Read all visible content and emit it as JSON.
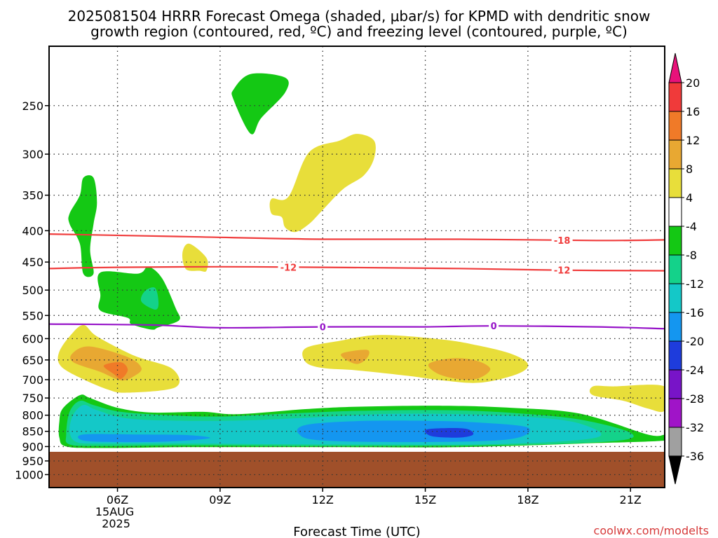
{
  "title_line1": "2025081504 HRRR Forecast Omega (shaded, μbar/s) for KPMD with dendritic snow",
  "title_line2": "growth region (contoured, red, ºC) and freezing level (contoured, purple, ºC)",
  "credit": "coolwx.com/modelts",
  "chart_data": {
    "type": "heatmap",
    "title": "2025081504 HRRR Forecast Omega (shaded, μbar/s) for KPMD with dendritic snow growth region (contoured, red, ºC) and freezing level (contoured, purple, ºC)",
    "xlabel": "Forecast Time (UTC)",
    "ylabel": "",
    "x_range_hours_utc": [
      4,
      22
    ],
    "y_range_hPa": [
      1050,
      200
    ],
    "y_scale": "log-pressure (inverted)",
    "x_ticks": [
      {
        "hour": 6,
        "label": "06Z",
        "sub1": "15AUG",
        "sub2": "2025"
      },
      {
        "hour": 9,
        "label": "09Z"
      },
      {
        "hour": 12,
        "label": "12Z"
      },
      {
        "hour": 15,
        "label": "15Z"
      },
      {
        "hour": 18,
        "label": "18Z"
      },
      {
        "hour": 21,
        "label": "21Z"
      }
    ],
    "y_ticks": [
      250,
      300,
      350,
      400,
      450,
      500,
      550,
      600,
      650,
      700,
      750,
      800,
      850,
      900,
      950,
      1000
    ],
    "grid": true,
    "ground_level_hPa": 918,
    "colorbar": {
      "levels": [
        20,
        16,
        12,
        8,
        4,
        -4,
        -8,
        -12,
        -16,
        -20,
        -24,
        -28,
        -32,
        -36
      ],
      "colors": [
        "#e8127a",
        "#f03a3a",
        "#f07a28",
        "#e8a832",
        "#e8de3a",
        "#ffffff",
        "#14c814",
        "#14d28a",
        "#14c8c8",
        "#1496f0",
        "#1e3cdc",
        "#7814c8",
        "#a014c8",
        "#a0a0a0",
        "#000000"
      ]
    },
    "contours": [
      {
        "name": "dendritic snow growth -18C",
        "value": -18,
        "color": "#f03c3c",
        "points": [
          [
            4,
            405
          ],
          [
            8,
            409
          ],
          [
            12,
            413
          ],
          [
            16,
            413
          ],
          [
            20,
            415
          ],
          [
            22,
            414
          ]
        ],
        "labels": [
          {
            "x": 19.0,
            "text": "-18"
          }
        ]
      },
      {
        "name": "dendritic snow growth -12C",
        "value": -12,
        "color": "#f03c3c",
        "points": [
          [
            4,
            461
          ],
          [
            6,
            459
          ],
          [
            9,
            458
          ],
          [
            12,
            459
          ],
          [
            16,
            461
          ],
          [
            19,
            464
          ],
          [
            22,
            465
          ]
        ],
        "labels": [
          {
            "x": 11.0,
            "text": "-12"
          },
          {
            "x": 19.0,
            "text": "-12"
          }
        ]
      },
      {
        "name": "freezing level 0C",
        "value": 0,
        "color": "#9614c8",
        "points": [
          [
            4,
            568
          ],
          [
            7,
            570
          ],
          [
            9,
            576
          ],
          [
            12,
            574
          ],
          [
            15,
            574
          ],
          [
            17,
            572
          ],
          [
            20,
            574
          ],
          [
            22,
            578
          ]
        ],
        "labels": [
          {
            "x": 12.0,
            "text": "0"
          },
          {
            "x": 17.0,
            "text": "0"
          }
        ]
      }
    ],
    "shaded_regions": [
      {
        "name": "upward motion -4 (upper)",
        "omega": -4,
        "color": "#14c814",
        "points": [
          [
            9.4,
            235
          ],
          [
            9.9,
            222
          ],
          [
            10.9,
            225
          ],
          [
            10.9,
            238
          ],
          [
            10.2,
            262
          ],
          [
            9.9,
            278
          ],
          [
            9.4,
            245
          ]
        ]
      },
      {
        "name": "upward motion -4 (tall column)",
        "omega": -4,
        "color": "#14c814",
        "points": [
          [
            5.0,
            328
          ],
          [
            5.3,
            328
          ],
          [
            5.4,
            360
          ],
          [
            5.3,
            390
          ],
          [
            5.2,
            430
          ],
          [
            5.3,
            470
          ],
          [
            5.0,
            470
          ],
          [
            4.9,
            420
          ],
          [
            4.6,
            390
          ],
          [
            4.6,
            375
          ],
          [
            4.9,
            350
          ]
        ]
      },
      {
        "name": "upward motion -4 (mid)",
        "omega": -4,
        "color": "#14c814",
        "points": [
          [
            5.5,
            468
          ],
          [
            6.6,
            470
          ],
          [
            6.9,
            458
          ],
          [
            7.3,
            478
          ],
          [
            7.7,
            535
          ],
          [
            7.8,
            560
          ],
          [
            7.2,
            575
          ],
          [
            7.0,
            580
          ],
          [
            6.4,
            568
          ],
          [
            6.3,
            555
          ],
          [
            5.5,
            540
          ],
          [
            5.5,
            510
          ]
        ]
      },
      {
        "name": "upward motion -8 (mid patch)",
        "omega": -8,
        "color": "#14d28a",
        "points": [
          [
            6.8,
            502
          ],
          [
            7.1,
            496
          ],
          [
            7.2,
            525
          ],
          [
            7.1,
            538
          ],
          [
            6.7,
            522
          ]
        ]
      },
      {
        "name": "upward motion -4 (low band)",
        "omega": -4,
        "color": "#14c814",
        "points": [
          [
            4.4,
            780
          ],
          [
            4.9,
            742
          ],
          [
            5.2,
            750
          ],
          [
            6.0,
            778
          ],
          [
            7.0,
            792
          ],
          [
            8.5,
            790
          ],
          [
            9.5,
            797
          ],
          [
            11.5,
            782
          ],
          [
            13.0,
            775
          ],
          [
            15.5,
            772
          ],
          [
            17.5,
            778
          ],
          [
            19.5,
            795
          ],
          [
            21.5,
            860
          ],
          [
            22.0,
            862
          ],
          [
            22.0,
            880
          ],
          [
            19.5,
            890
          ],
          [
            16.0,
            902
          ],
          [
            12.0,
            902
          ],
          [
            8.0,
            902
          ],
          [
            5.5,
            905
          ],
          [
            4.5,
            900
          ],
          [
            4.3,
            870
          ],
          [
            4.3,
            820
          ]
        ]
      },
      {
        "name": "upward motion -8 (low band)",
        "omega": -8,
        "color": "#14d28a",
        "points": [
          [
            4.6,
            790
          ],
          [
            4.9,
            758
          ],
          [
            5.3,
            770
          ],
          [
            6.1,
            790
          ],
          [
            7.5,
            800
          ],
          [
            9.0,
            804
          ],
          [
            11.0,
            795
          ],
          [
            13.0,
            787
          ],
          [
            15.5,
            785
          ],
          [
            17.5,
            793
          ],
          [
            19.5,
            813
          ],
          [
            21.0,
            855
          ],
          [
            20.5,
            882
          ],
          [
            17.0,
            896
          ],
          [
            12.0,
            898
          ],
          [
            8.0,
            896
          ],
          [
            5.5,
            898
          ],
          [
            4.6,
            893
          ],
          [
            4.5,
            860
          ]
        ]
      },
      {
        "name": "upward motion -12 (low band)",
        "omega": -12,
        "color": "#14c8c8",
        "points": [
          [
            4.7,
            800
          ],
          [
            5.0,
            770
          ],
          [
            5.4,
            785
          ],
          [
            6.3,
            810
          ],
          [
            8.0,
            817
          ],
          [
            10.0,
            815
          ],
          [
            12.0,
            805
          ],
          [
            14.0,
            796
          ],
          [
            16.0,
            797
          ],
          [
            18.0,
            805
          ],
          [
            19.5,
            825
          ],
          [
            20.0,
            870
          ],
          [
            17.0,
            892
          ],
          [
            12.0,
            893
          ],
          [
            8.0,
            890
          ],
          [
            5.5,
            890
          ],
          [
            4.8,
            885
          ],
          [
            4.6,
            850
          ]
        ]
      },
      {
        "name": "upward motion -16 (left)",
        "omega": -16,
        "color": "#1496f0",
        "points": [
          [
            5.0,
            860
          ],
          [
            6.5,
            860
          ],
          [
            8.0,
            862
          ],
          [
            8.7,
            872
          ],
          [
            7.5,
            883
          ],
          [
            6.0,
            885
          ],
          [
            5.0,
            880
          ]
        ]
      },
      {
        "name": "upward motion -16 (right)",
        "omega": -16,
        "color": "#1496f0",
        "points": [
          [
            11.5,
            830
          ],
          [
            13.0,
            818
          ],
          [
            15.0,
            817
          ],
          [
            16.5,
            822
          ],
          [
            18.0,
            838
          ],
          [
            17.5,
            875
          ],
          [
            15.0,
            885
          ],
          [
            12.0,
            880
          ],
          [
            11.3,
            858
          ]
        ]
      },
      {
        "name": "upward motion -20",
        "omega": -20,
        "color": "#1e3cdc",
        "points": [
          [
            15.0,
            846
          ],
          [
            15.5,
            840
          ],
          [
            16.2,
            842
          ],
          [
            16.4,
            860
          ],
          [
            16.0,
            870
          ],
          [
            15.2,
            866
          ]
        ]
      },
      {
        "name": "downward motion 4 (upper)",
        "omega": 4,
        "color": "#e8de3a",
        "points": [
          [
            11.6,
            298
          ],
          [
            12.5,
            285
          ],
          [
            13.0,
            278
          ],
          [
            13.5,
            285
          ],
          [
            13.5,
            305
          ],
          [
            13.2,
            325
          ],
          [
            12.6,
            342
          ],
          [
            12.0,
            370
          ],
          [
            11.6,
            390
          ],
          [
            11.2,
            402
          ],
          [
            10.9,
            395
          ],
          [
            10.8,
            380
          ],
          [
            10.5,
            375
          ],
          [
            10.5,
            355
          ],
          [
            11.0,
            352
          ]
        ]
      },
      {
        "name": "downward motion 4 (small)",
        "omega": 4,
        "color": "#e8de3a",
        "points": [
          [
            7.9,
            435
          ],
          [
            8.1,
            420
          ],
          [
            8.6,
            443
          ],
          [
            8.6,
            465
          ],
          [
            8.4,
            465
          ],
          [
            8.0,
            462
          ]
        ]
      },
      {
        "name": "downward motion 4 (left)",
        "omega": 4,
        "color": "#e8de3a",
        "points": [
          [
            4.3,
            630
          ],
          [
            4.6,
            595
          ],
          [
            5.0,
            570
          ],
          [
            5.4,
            595
          ],
          [
            6.5,
            640
          ],
          [
            7.6,
            672
          ],
          [
            7.7,
            720
          ],
          [
            6.3,
            735
          ],
          [
            5.7,
            726
          ],
          [
            4.7,
            686
          ],
          [
            4.3,
            660
          ]
        ]
      },
      {
        "name": "downward motion 8 (left)",
        "omega": 8,
        "color": "#e8a832",
        "points": [
          [
            4.7,
            633
          ],
          [
            5.2,
            618
          ],
          [
            6.3,
            643
          ],
          [
            6.7,
            670
          ],
          [
            6.5,
            690
          ],
          [
            6.1,
            702
          ],
          [
            5.5,
            680
          ],
          [
            4.7,
            655
          ]
        ]
      },
      {
        "name": "downward motion 12 (left)",
        "omega": 12,
        "color": "#f07a28",
        "points": [
          [
            5.6,
            664
          ],
          [
            6.1,
            656
          ],
          [
            6.3,
            675
          ],
          [
            6.1,
            698
          ],
          [
            5.9,
            686
          ]
        ]
      },
      {
        "name": "downward motion 4 (middle)",
        "omega": 4,
        "color": "#e8de3a",
        "points": [
          [
            11.5,
            622
          ],
          [
            12.5,
            605
          ],
          [
            13.7,
            592
          ],
          [
            15.5,
            602
          ],
          [
            16.5,
            615
          ],
          [
            17.5,
            635
          ],
          [
            18.0,
            660
          ],
          [
            17.7,
            685
          ],
          [
            16.6,
            708
          ],
          [
            15.5,
            702
          ],
          [
            14.5,
            690
          ],
          [
            13.0,
            676
          ],
          [
            12.0,
            670
          ],
          [
            11.5,
            655
          ]
        ]
      },
      {
        "name": "downward motion 8 (middle A)",
        "omega": 8,
        "color": "#e8a832",
        "points": [
          [
            12.6,
            633
          ],
          [
            13.3,
            626
          ],
          [
            13.3,
            645
          ],
          [
            13.0,
            660
          ],
          [
            12.6,
            645
          ]
        ]
      },
      {
        "name": "downward motion 8 (middle B)",
        "omega": 8,
        "color": "#e8a832",
        "points": [
          [
            15.1,
            660
          ],
          [
            15.8,
            646
          ],
          [
            16.5,
            652
          ],
          [
            16.9,
            672
          ],
          [
            16.6,
            695
          ],
          [
            16.1,
            700
          ],
          [
            15.4,
            686
          ]
        ]
      },
      {
        "name": "downward motion 4 (right)",
        "omega": 4,
        "color": "#e8de3a",
        "points": [
          [
            19.9,
            718
          ],
          [
            20.5,
            718
          ],
          [
            22.0,
            718
          ],
          [
            22.0,
            786
          ],
          [
            21.5,
            780
          ],
          [
            20.8,
            758
          ],
          [
            19.9,
            742
          ]
        ]
      }
    ]
  }
}
